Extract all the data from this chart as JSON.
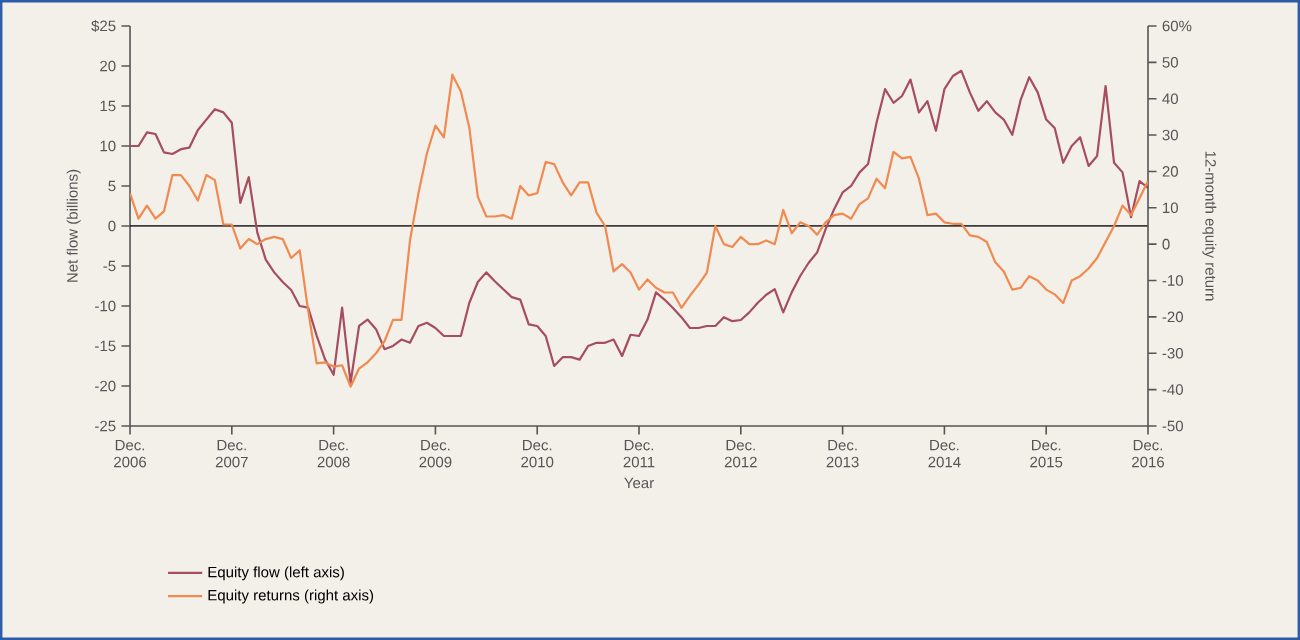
{
  "chart_data": {
    "type": "line",
    "xlabel": "Year",
    "ylabel": "Net flow (billions)",
    "y2label": "12-month equity return",
    "x": [
      "2006-12",
      "2007-01",
      "2007-02",
      "2007-03",
      "2007-04",
      "2007-05",
      "2007-06",
      "2007-07",
      "2007-08",
      "2007-09",
      "2007-10",
      "2007-11",
      "2007-12",
      "2008-01",
      "2008-02",
      "2008-03",
      "2008-04",
      "2008-05",
      "2008-06",
      "2008-07",
      "2008-08",
      "2008-09",
      "2008-10",
      "2008-11",
      "2008-12",
      "2009-01",
      "2009-02",
      "2009-03",
      "2009-04",
      "2009-05",
      "2009-06",
      "2009-07",
      "2009-08",
      "2009-09",
      "2009-10",
      "2009-11",
      "2009-12",
      "2010-01",
      "2010-02",
      "2010-03",
      "2010-04",
      "2010-05",
      "2010-06",
      "2010-07",
      "2010-08",
      "2010-09",
      "2010-10",
      "2010-11",
      "2010-12",
      "2011-01",
      "2011-02",
      "2011-03",
      "2011-04",
      "2011-05",
      "2011-06",
      "2011-07",
      "2011-08",
      "2011-09",
      "2011-10",
      "2011-11",
      "2011-12",
      "2012-01",
      "2012-02",
      "2012-03",
      "2012-04",
      "2012-05",
      "2012-06",
      "2012-07",
      "2012-08",
      "2012-09",
      "2012-10",
      "2012-11",
      "2012-12",
      "2013-01",
      "2013-02",
      "2013-03",
      "2013-04",
      "2013-05",
      "2013-06",
      "2013-07",
      "2013-08",
      "2013-09",
      "2013-10",
      "2013-11",
      "2013-12",
      "2014-01",
      "2014-02",
      "2014-03",
      "2014-04",
      "2014-05",
      "2014-06",
      "2014-07",
      "2014-08",
      "2014-09",
      "2014-10",
      "2014-11",
      "2014-12",
      "2015-01",
      "2015-02",
      "2015-03",
      "2015-04",
      "2015-05",
      "2015-06",
      "2015-07",
      "2015-08",
      "2015-09",
      "2015-10",
      "2015-11",
      "2015-12",
      "2016-01",
      "2016-02",
      "2016-03",
      "2016-04",
      "2016-05",
      "2016-06",
      "2016-07",
      "2016-08",
      "2016-09",
      "2016-10",
      "2016-11",
      "2016-12"
    ],
    "series": [
      {
        "name": "Equity flow (left axis)",
        "color": "#a64d5e",
        "values": [
          10,
          10,
          11.7,
          11.5,
          9.2,
          9,
          9.6,
          9.8,
          12,
          13.3,
          14.6,
          14.2,
          12.9,
          2.9,
          6.1,
          -0.8,
          -4.2,
          -5.8,
          -7,
          -8,
          -10,
          -10.2,
          -13.7,
          -16.7,
          -18.6,
          -10.2,
          -19.6,
          -12.5,
          -11.7,
          -12.9,
          -15.4,
          -15,
          -14.2,
          -14.6,
          -12.5,
          -12.1,
          -12.75,
          -13.75,
          -13.75,
          -13.75,
          -9.6,
          -7,
          -5.8,
          -6.9,
          -7.9,
          -8.9,
          -9.2,
          -12.3,
          -12.5,
          -13.75,
          -17.5,
          -16.4,
          -16.4,
          -16.7,
          -15,
          -14.6,
          -14.6,
          -14.2,
          -16.25,
          -13.6,
          -13.75,
          -11.7,
          -8.3,
          -9.2,
          -10.25,
          -11.4,
          -12.75,
          -12.75,
          -12.5,
          -12.5,
          -11.4,
          -11.9,
          -11.75,
          -10.8,
          -9.6,
          -8.6,
          -7.9,
          -10.8,
          -8.3,
          -6.25,
          -4.6,
          -3.3,
          -0.4,
          2.1,
          4.2,
          5,
          6.7,
          7.75,
          12.9,
          17.1,
          15.4,
          16.25,
          18.3,
          14.2,
          15.6,
          11.9,
          17.1,
          18.75,
          19.4,
          16.7,
          14.4,
          15.6,
          14.2,
          13.3,
          11.4,
          15.8,
          18.6,
          16.7,
          13.3,
          12.25,
          7.9,
          10,
          11.1,
          7.5,
          8.75,
          17.5,
          7.9,
          6.7,
          1.1,
          5.6,
          4.75
        ]
      },
      {
        "name": "Equity returns (right axis)",
        "color": "#f08a50",
        "axis": "y2",
        "values": [
          14,
          7,
          10.6,
          7,
          9,
          19,
          19,
          16,
          12,
          19,
          17.6,
          5.4,
          5.4,
          -1.2,
          1.4,
          0,
          1.4,
          2,
          1.4,
          -3.8,
          -1.7,
          -18.3,
          -32.8,
          -32.5,
          -33.7,
          -33.3,
          -39.2,
          -34.2,
          -32.5,
          -30,
          -26.7,
          -20.8,
          -20.8,
          1,
          14,
          25,
          32.6,
          29.4,
          46.6,
          42,
          32,
          13,
          7.6,
          7.6,
          8,
          7,
          16,
          13.4,
          14,
          22.6,
          22,
          17,
          13.4,
          17,
          17,
          8.6,
          5,
          -7.5,
          -5.5,
          -7.8,
          -12.5,
          -9.7,
          -12,
          -13.3,
          -13.3,
          -17.5,
          -14.2,
          -11.2,
          -7.8,
          5,
          0,
          -0.8,
          2,
          0,
          0,
          1,
          0,
          9.4,
          3,
          6,
          5,
          2.6,
          6,
          8,
          8.4,
          7,
          11,
          12.6,
          18,
          15.4,
          25.4,
          23.6,
          24,
          18,
          8,
          8.4,
          6,
          5.6,
          5.6,
          2.4,
          2,
          0.6,
          -5,
          -7.5,
          -12.5,
          -12,
          -8.8,
          -10,
          -12.5,
          -13.8,
          -16.2,
          -10,
          -8.8,
          -6.7,
          -3.8,
          0.6,
          5,
          10.6,
          8,
          12.6,
          17.4
        ]
      }
    ],
    "xlim": [
      "2006-12",
      "2016-12"
    ],
    "xticks": [
      {
        "value": "2006-12",
        "label": "Dec. 2006"
      },
      {
        "value": "2007-12",
        "label": "Dec. 2007"
      },
      {
        "value": "2008-12",
        "label": "Dec. 2008"
      },
      {
        "value": "2009-12",
        "label": "Dec. 2009"
      },
      {
        "value": "2010-12",
        "label": "Dec. 2010"
      },
      {
        "value": "2011-12",
        "label": "Dec. 2011"
      },
      {
        "value": "2012-12",
        "label": "Dec. 2012"
      },
      {
        "value": "2013-12",
        "label": "Dec. 2013"
      },
      {
        "value": "2014-12",
        "label": "Dec. 2014"
      },
      {
        "value": "2015-12",
        "label": "Dec. 2015"
      },
      {
        "value": "2016-12",
        "label": "Dec. 2016"
      }
    ],
    "ylim": [
      -25,
      25
    ],
    "yticks": [
      -25,
      -20,
      -15,
      -10,
      -5,
      0,
      5,
      10,
      15,
      20,
      {
        "value": 25,
        "label": "$25"
      }
    ],
    "y2lim": [
      -50,
      60
    ],
    "y2ticks": [
      -50,
      -40,
      -30,
      -20,
      -10,
      0,
      10,
      20,
      30,
      40,
      50,
      {
        "value": 60,
        "label": "60%"
      }
    ],
    "ref_lines": [
      {
        "axis": "y",
        "value": 0,
        "color": "#000000"
      }
    ],
    "legend": "bottom left",
    "grid": false,
    "marker": "none"
  }
}
